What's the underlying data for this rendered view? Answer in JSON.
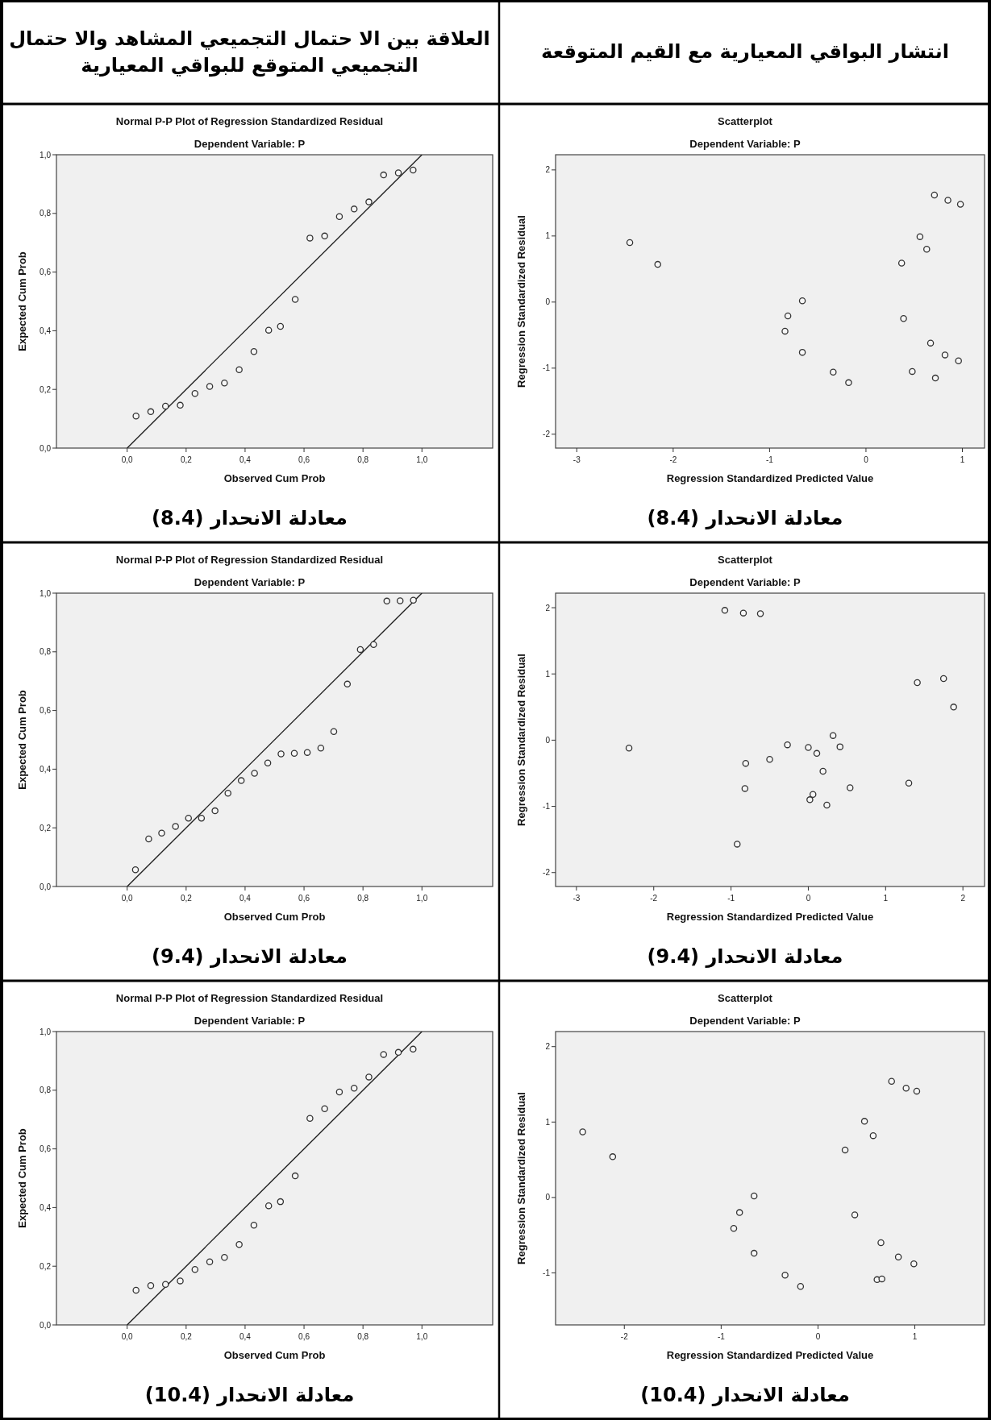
{
  "chart_data": [
    {
      "type": "scatter",
      "title": "Scatterplot",
      "subtitle": "Dependent Variable: P",
      "xlabel": "Regression Standardized Predicted Value",
      "ylabel": "Regression Standardized Residual",
      "annotations": [
        "انتشار البواقي المعيارية مع القيم المتوقعة",
        "معادلة الانحدار (8.4)"
      ],
      "marker": "circle",
      "xlim": [
        -3.22,
        1.23
      ],
      "ylim": [
        -2.21,
        2.23
      ],
      "xticks": [
        -3,
        -2,
        -1,
        0,
        1
      ],
      "yticks": [
        -2,
        -1,
        0,
        1,
        2
      ],
      "series": [
        {
          "color": "#333333",
          "x": [
            -2.45,
            -2.16,
            -0.66,
            -0.81,
            -0.84,
            -0.66,
            -0.34,
            -0.18,
            0.37,
            0.39,
            0.48,
            0.56,
            0.63,
            0.67,
            0.71,
            0.72,
            0.82,
            0.85,
            0.96,
            0.98
          ],
          "values": [
            0.9,
            0.57,
            0.02,
            -0.21,
            -0.44,
            -0.76,
            -1.06,
            -1.22,
            0.59,
            -0.25,
            -1.05,
            0.99,
            0.8,
            -0.62,
            1.62,
            -1.15,
            -0.8,
            1.54,
            -0.89,
            1.48
          ]
        }
      ]
    },
    {
      "type": "scatter",
      "title": "Normal P-P Plot of Regression Standardized Residual",
      "subtitle": "Dependent Variable: P",
      "xlabel": "Observed Cum Prob",
      "ylabel": "Expected Cum Prob",
      "annotations": [
        "العلاقة بين الا حتمال التجميعي المشاهد والا حتمال التجميعي المتوقع للبواقي المعيارية",
        "معادلة الانحدار (8.4)"
      ],
      "marker": "circle",
      "xlim": [
        -0.24,
        1.24
      ],
      "ylim": [
        0,
        1
      ],
      "xticks": [
        {
          "value": 0,
          "label": "0,0"
        },
        {
          "value": 0.2,
          "label": "0,2"
        },
        {
          "value": 0.4,
          "label": "0,4"
        },
        {
          "value": 0.6,
          "label": "0,6"
        },
        {
          "value": 0.8,
          "label": "0,8"
        },
        {
          "value": 1,
          "label": "1,0"
        }
      ],
      "yticks": [
        {
          "value": 0,
          "label": "0,0"
        },
        {
          "value": 0.2,
          "label": "0,2"
        },
        {
          "value": 0.4,
          "label": "0,4"
        },
        {
          "value": 0.6,
          "label": "0,6"
        },
        {
          "value": 0.8,
          "label": "0,8"
        },
        {
          "value": 1,
          "label": "1,0"
        }
      ],
      "series": [
        {
          "color": "#333333",
          "x": [
            0.03,
            0.08,
            0.13,
            0.18,
            0.23,
            0.28,
            0.33,
            0.38,
            0.43,
            0.48,
            0.52,
            0.57,
            0.62,
            0.67,
            0.72,
            0.77,
            0.82,
            0.87,
            0.92,
            0.97
          ],
          "values": [
            0.109,
            0.124,
            0.143,
            0.146,
            0.186,
            0.21,
            0.222,
            0.267,
            0.329,
            0.402,
            0.415,
            0.507,
            0.716,
            0.723,
            0.789,
            0.815,
            0.839,
            0.931,
            0.938,
            0.948
          ]
        },
        {
          "type": "line",
          "marker": "none",
          "color": "#222222",
          "x": [
            0,
            1
          ],
          "values": [
            0,
            1
          ]
        }
      ]
    },
    {
      "type": "scatter",
      "title": "Scatterplot",
      "subtitle": "Dependent Variable: P",
      "xlabel": "Regression Standardized Predicted Value",
      "ylabel": "Regression Standardized Residual",
      "annotations": [
        "معادلة الانحدار (9.4)"
      ],
      "marker": "circle",
      "xlim": [
        -3.27,
        2.28
      ],
      "ylim": [
        -2.21,
        2.22
      ],
      "xticks": [
        -3,
        -2,
        -1,
        0,
        1,
        2
      ],
      "yticks": [
        -2,
        -1,
        0,
        1,
        2
      ],
      "series": [
        {
          "color": "#333333",
          "x": [
            -2.32,
            -1.08,
            -0.84,
            -0.62,
            -0.81,
            -0.82,
            -0.92,
            -0.5,
            -0.27,
            0.0,
            0.11,
            0.32,
            0.41,
            0.19,
            0.06,
            0.02,
            0.24,
            0.54,
            1.3,
            1.41,
            1.75,
            1.88
          ],
          "values": [
            -0.12,
            1.96,
            1.92,
            1.91,
            -0.35,
            -0.73,
            -1.57,
            -0.29,
            -0.07,
            -0.11,
            -0.2,
            0.07,
            -0.1,
            -0.47,
            -0.82,
            -0.9,
            -0.98,
            -0.72,
            -0.65,
            0.87,
            0.93,
            0.5
          ]
        }
      ]
    },
    {
      "type": "scatter",
      "title": "Normal P-P Plot of Regression Standardized Residual",
      "subtitle": "Dependent Variable: P",
      "xlabel": "Observed Cum Prob",
      "ylabel": "Expected Cum Prob",
      "annotations": [
        "معادلة الانحدار (9.4)"
      ],
      "marker": "circle",
      "xlim": [
        -0.24,
        1.24
      ],
      "ylim": [
        0,
        1
      ],
      "xticks": [
        {
          "value": 0,
          "label": "0,0"
        },
        {
          "value": 0.2,
          "label": "0,2"
        },
        {
          "value": 0.4,
          "label": "0,4"
        },
        {
          "value": 0.6,
          "label": "0,6"
        },
        {
          "value": 0.8,
          "label": "0,8"
        },
        {
          "value": 1,
          "label": "1,0"
        }
      ],
      "yticks": [
        {
          "value": 0,
          "label": "0,0"
        },
        {
          "value": 0.2,
          "label": "0,2"
        },
        {
          "value": 0.4,
          "label": "0,4"
        },
        {
          "value": 0.6,
          "label": "0,6"
        },
        {
          "value": 0.8,
          "label": "0,8"
        },
        {
          "value": 1,
          "label": "1,0"
        }
      ],
      "series": [
        {
          "color": "#333333",
          "x": [
            0.028,
            0.073,
            0.117,
            0.164,
            0.208,
            0.252,
            0.298,
            0.342,
            0.387,
            0.432,
            0.477,
            0.522,
            0.567,
            0.611,
            0.657,
            0.701,
            0.747,
            0.791,
            0.836,
            0.881,
            0.926,
            0.971
          ],
          "values": [
            0.057,
            0.162,
            0.182,
            0.205,
            0.233,
            0.233,
            0.258,
            0.318,
            0.361,
            0.386,
            0.421,
            0.452,
            0.454,
            0.457,
            0.472,
            0.528,
            0.69,
            0.808,
            0.825,
            0.973,
            0.974,
            0.976
          ]
        },
        {
          "type": "line",
          "marker": "none",
          "color": "#222222",
          "x": [
            0,
            1
          ],
          "values": [
            0,
            1
          ]
        }
      ]
    },
    {
      "type": "scatter",
      "title": "Scatterplot",
      "subtitle": "Dependent Variable: P",
      "xlabel": "Regression Standardized Predicted Value",
      "ylabel": "Regression Standardized Residual",
      "annotations": [
        "معادلة الانحدار (10.4)"
      ],
      "marker": "circle",
      "xlim": [
        -2.71,
        1.72
      ],
      "ylim": [
        -1.69,
        2.2
      ],
      "xticks": [
        -2,
        -1,
        0,
        1
      ],
      "yticks": [
        -1,
        0,
        1,
        2
      ],
      "series": [
        {
          "color": "#333333",
          "x": [
            -2.43,
            -2.12,
            -0.66,
            -0.81,
            -0.87,
            -0.66,
            -0.34,
            -0.18,
            0.28,
            0.38,
            0.48,
            0.57,
            0.65,
            0.61,
            0.66,
            0.76,
            0.83,
            0.91,
            0.99,
            1.02
          ],
          "values": [
            0.87,
            0.54,
            0.02,
            -0.2,
            -0.41,
            -0.74,
            -1.03,
            -1.18,
            0.63,
            -0.23,
            1.01,
            0.82,
            -0.6,
            -1.09,
            -1.08,
            1.54,
            -0.79,
            1.45,
            -0.88,
            1.41
          ]
        }
      ]
    },
    {
      "type": "scatter",
      "title": "Normal P-P Plot of Regression Standardized Residual",
      "subtitle": "Dependent Variable: P",
      "xlabel": "Observed Cum Prob",
      "ylabel": "Expected Cum Prob",
      "annotations": [
        "معادلة الانحدار (10.4)"
      ],
      "marker": "circle",
      "xlim": [
        -0.24,
        1.24
      ],
      "ylim": [
        0,
        1
      ],
      "xticks": [
        {
          "value": 0,
          "label": "0,0"
        },
        {
          "value": 0.2,
          "label": "0,2"
        },
        {
          "value": 0.4,
          "label": "0,4"
        },
        {
          "value": 0.6,
          "label": "0,6"
        },
        {
          "value": 0.8,
          "label": "0,8"
        },
        {
          "value": 1,
          "label": "1,0"
        }
      ],
      "yticks": [
        {
          "value": 0,
          "label": "0,0"
        },
        {
          "value": 0.2,
          "label": "0,2"
        },
        {
          "value": 0.4,
          "label": "0,4"
        },
        {
          "value": 0.6,
          "label": "0,6"
        },
        {
          "value": 0.8,
          "label": "0,8"
        },
        {
          "value": 1,
          "label": "1,0"
        }
      ],
      "series": [
        {
          "color": "#333333",
          "x": [
            0.03,
            0.08,
            0.13,
            0.18,
            0.23,
            0.28,
            0.33,
            0.38,
            0.43,
            0.48,
            0.52,
            0.57,
            0.62,
            0.67,
            0.72,
            0.77,
            0.82,
            0.87,
            0.92,
            0.97
          ],
          "values": [
            0.118,
            0.134,
            0.138,
            0.15,
            0.189,
            0.215,
            0.23,
            0.274,
            0.34,
            0.406,
            0.42,
            0.508,
            0.704,
            0.737,
            0.794,
            0.807,
            0.845,
            0.922,
            0.929,
            0.94
          ]
        },
        {
          "type": "line",
          "marker": "none",
          "color": "#222222",
          "x": [
            0,
            1
          ],
          "values": [
            0,
            1
          ]
        }
      ]
    }
  ]
}
